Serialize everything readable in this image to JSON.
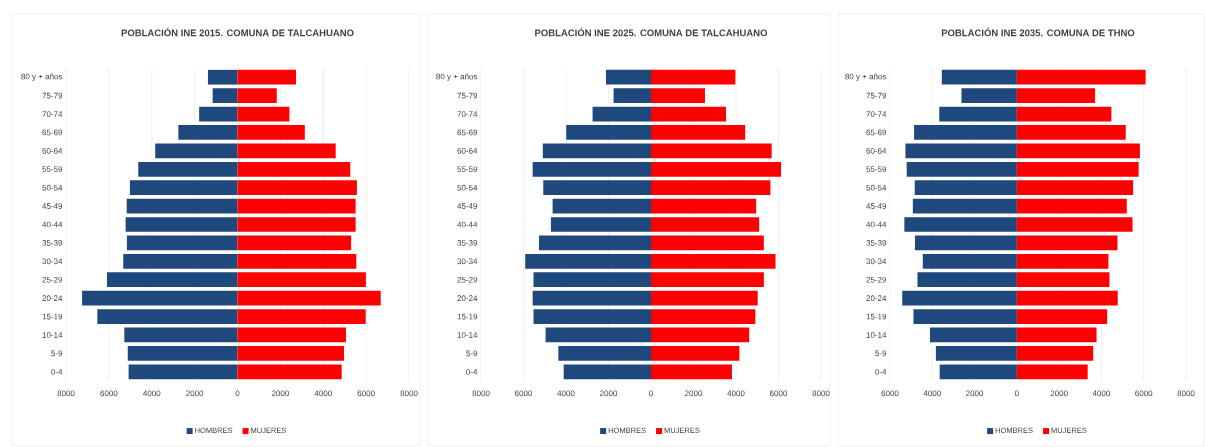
{
  "chart_data": [
    {
      "type": "bar",
      "orientation": "horizontal",
      "stacked": true,
      "title": "POBLACIÓN INE 2015. COMUNA DE TALCAHUANO",
      "categories": [
        "80 y + años",
        "75-79",
        "70-74",
        "65-69",
        "60-64",
        "55-59",
        "50-54",
        "45-49",
        "40-44",
        "35-39",
        "30-34",
        "25-29",
        "20-24",
        "15-19",
        "10-14",
        "5-9",
        "0-4"
      ],
      "series": [
        {
          "name": "HOMBRES",
          "color": "#1f497d",
          "values": [
            -1380,
            -1160,
            -1790,
            -2760,
            -3840,
            -4630,
            -5020,
            -5170,
            -5220,
            -5160,
            -5330,
            -6090,
            -7250,
            -6540,
            -5280,
            -5120,
            -5080
          ]
        },
        {
          "name": "MUJERES",
          "color": "#ff0000",
          "values": [
            2730,
            1830,
            2420,
            3140,
            4580,
            5260,
            5570,
            5510,
            5510,
            5300,
            5540,
            5990,
            6680,
            5980,
            5060,
            4970,
            4860
          ]
        }
      ],
      "xlim": [
        -8000,
        8000
      ],
      "xticks": [
        {
          "value": -8000,
          "label": "8000"
        },
        {
          "value": -6000,
          "label": "6000"
        },
        {
          "value": -4000,
          "label": "4000"
        },
        {
          "value": -2000,
          "label": "2000"
        },
        0,
        2000,
        4000,
        6000,
        8000
      ],
      "grid": "x",
      "legend": "bottom"
    },
    {
      "type": "bar",
      "orientation": "horizontal",
      "stacked": true,
      "title": "POBLACIÓN INE 2025. COMUNA DE TALCAHUANO",
      "categories": [
        "80 y + años",
        "75-79",
        "70-74",
        "65-69",
        "60-64",
        "55-59",
        "50-54",
        "45-49",
        "40-44",
        "35-39",
        "30-34",
        "25-29",
        "20-24",
        "15-19",
        "10-14",
        "5-9",
        "0-4"
      ],
      "series": [
        {
          "name": "HOMBRES",
          "color": "#1f497d",
          "values": [
            -2120,
            -1760,
            -2750,
            -3990,
            -5090,
            -5570,
            -5070,
            -4630,
            -4710,
            -5270,
            -5920,
            -5530,
            -5570,
            -5530,
            -4960,
            -4360,
            -4110
          ]
        },
        {
          "name": "MUJERES",
          "color": "#ff0000",
          "values": [
            3970,
            2540,
            3530,
            4430,
            5680,
            6120,
            5620,
            4950,
            5090,
            5310,
            5860,
            5310,
            5020,
            4910,
            4620,
            4160,
            3810
          ]
        }
      ],
      "xlim": [
        -8000,
        8000
      ],
      "xticks": [
        {
          "value": -8000,
          "label": "8000"
        },
        {
          "value": -6000,
          "label": "6000"
        },
        {
          "value": -4000,
          "label": "4000"
        },
        {
          "value": -2000,
          "label": "2000"
        },
        0,
        2000,
        4000,
        6000,
        8000
      ],
      "grid": "x",
      "legend": "bottom"
    },
    {
      "type": "bar",
      "orientation": "horizontal",
      "stacked": true,
      "title": "POBLACIÓN INE 2035. COMUNA DE THNO",
      "categories": [
        "80 y + años",
        "75-79",
        "70-74",
        "65-69",
        "60-64",
        "55-59",
        "50-54",
        "45-49",
        "40-44",
        "35-39",
        "30-34",
        "25-29",
        "20-24",
        "15-19",
        "10-14",
        "5-9",
        "0-4"
      ],
      "series": [
        {
          "name": "HOMBRES",
          "color": "#1f497d",
          "values": [
            -3550,
            -2620,
            -3670,
            -4860,
            -5270,
            -5210,
            -4830,
            -4920,
            -5320,
            -4820,
            -4450,
            -4700,
            -5420,
            -4890,
            -4110,
            -3830,
            -3650
          ]
        },
        {
          "name": "MUJERES",
          "color": "#ff0000",
          "values": [
            6090,
            3700,
            4470,
            5150,
            5820,
            5760,
            5500,
            5200,
            5470,
            4760,
            4330,
            4380,
            4770,
            4270,
            3770,
            3610,
            3350
          ]
        }
      ],
      "xlim": [
        -6000,
        8000
      ],
      "xticks": [
        {
          "value": -6000,
          "label": "6000"
        },
        {
          "value": -4000,
          "label": "4000"
        },
        {
          "value": -2000,
          "label": "2000"
        },
        0,
        2000,
        4000,
        6000,
        8000
      ],
      "grid": "x",
      "legend": "bottom"
    }
  ]
}
